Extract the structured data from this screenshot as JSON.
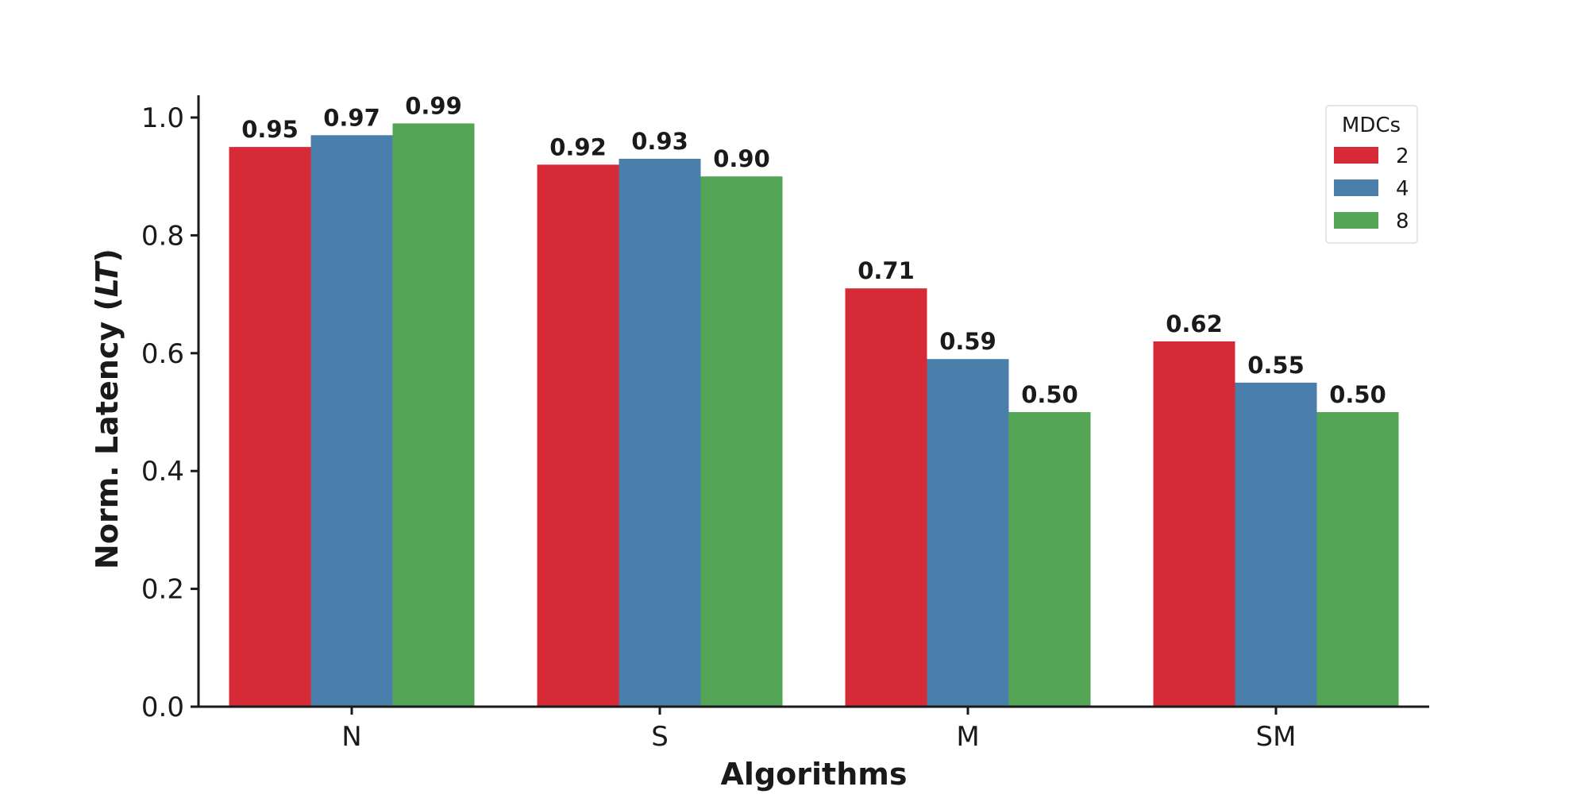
{
  "chart_data": {
    "type": "bar",
    "categories": [
      "N",
      "S",
      "M",
      "SM"
    ],
    "series": [
      {
        "name": "2",
        "color": "#d62b37",
        "values": [
          0.95,
          0.92,
          0.71,
          0.62
        ],
        "labels": [
          "0.95",
          "0.92",
          "0.71",
          "0.62"
        ]
      },
      {
        "name": "4",
        "color": "#4a7eab",
        "values": [
          0.97,
          0.93,
          0.59,
          0.55
        ],
        "labels": [
          "0.97",
          "0.93",
          "0.59",
          "0.55"
        ]
      },
      {
        "name": "8",
        "color": "#55a556",
        "values": [
          0.99,
          0.9,
          0.5,
          0.5
        ],
        "labels": [
          "0.99",
          "0.90",
          "0.50",
          "0.50"
        ]
      }
    ],
    "title": "",
    "xlabel": "Algorithms",
    "ylabel_main": "Norm. Latency (",
    "ylabel_italic": "LT",
    "ylabel_close": ")",
    "ylim": [
      0,
      1.0
    ],
    "yticks": [
      "0.0",
      "0.2",
      "0.4",
      "0.6",
      "0.8",
      "1.0"
    ],
    "legend": {
      "title": "MDCs",
      "placement": "top-right"
    },
    "grid": false
  }
}
